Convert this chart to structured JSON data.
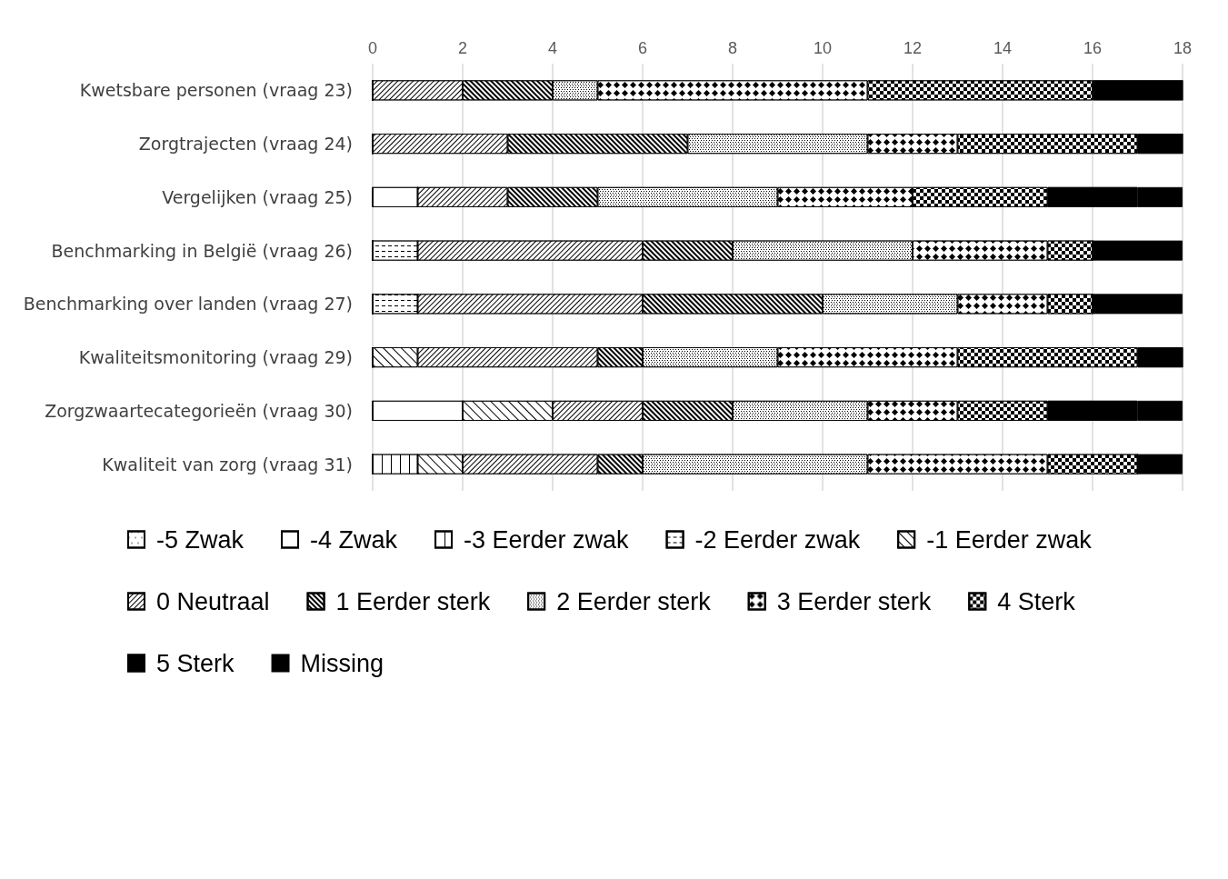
{
  "chart_data": {
    "type": "bar",
    "orientation": "horizontal",
    "stacked": true,
    "categories": [
      "Kwetsbare personen (vraag 23)",
      "Zorgtrajecten (vraag 24)",
      "Vergelijken (vraag 25)",
      "Benchmarking in België (vraag 26)",
      "Benchmarking over landen (vraag 27)",
      "Kwaliteitsmonitoring (vraag 29)",
      "Zorgzwaartecategorieën (vraag 30)",
      "Kwaliteit van zorg (vraag 31)"
    ],
    "series": [
      {
        "name": "-5 Zwak",
        "color": "#ffffff",
        "values": [
          0,
          0,
          0,
          0,
          0,
          0,
          0,
          0
        ]
      },
      {
        "name": "-4 Zwak",
        "color": "#ffffff",
        "values": [
          0,
          0,
          1,
          0,
          0,
          0,
          2,
          0
        ]
      },
      {
        "name": "-3 Eerder zwak",
        "color": "#ffffff",
        "values": [
          0,
          0,
          0,
          0,
          0,
          0,
          0,
          1
        ]
      },
      {
        "name": "-2 Eerder zwak",
        "color": "#ffffff",
        "values": [
          0,
          0,
          0,
          1,
          1,
          0,
          0,
          0
        ]
      },
      {
        "name": "-1 Eerder zwak",
        "color": "#ffffff",
        "values": [
          0,
          0,
          0,
          0,
          0,
          1,
          2,
          1
        ]
      },
      {
        "name": "0 Neutraal",
        "color": "#ffffff",
        "values": [
          2,
          3,
          2,
          5,
          5,
          4,
          2,
          3
        ]
      },
      {
        "name": "1 Eerder sterk",
        "color": "#ffffff",
        "values": [
          2,
          4,
          2,
          2,
          4,
          1,
          2,
          1
        ]
      },
      {
        "name": "2 Eerder sterk",
        "color": "#ffffff",
        "values": [
          1,
          4,
          4,
          4,
          3,
          3,
          3,
          5
        ]
      },
      {
        "name": "3 Eerder sterk",
        "color": "#ffffff",
        "values": [
          6,
          2,
          3,
          3,
          2,
          4,
          2,
          4
        ]
      },
      {
        "name": "4 Sterk",
        "color": "#ffffff",
        "values": [
          5,
          4,
          3,
          1,
          1,
          4,
          2,
          2
        ]
      },
      {
        "name": "5 Sterk",
        "color": "#000000",
        "values": [
          2,
          1,
          2,
          0,
          0,
          1,
          2,
          0
        ]
      },
      {
        "name": "Missing",
        "color": "#000000",
        "values": [
          0,
          0,
          1,
          2,
          2,
          0,
          1,
          1
        ]
      }
    ],
    "xlim": [
      0,
      18
    ],
    "xticks": [
      0,
      2,
      4,
      6,
      8,
      10,
      12,
      14,
      16,
      18
    ],
    "grid": "x",
    "legend": "bottom"
  }
}
